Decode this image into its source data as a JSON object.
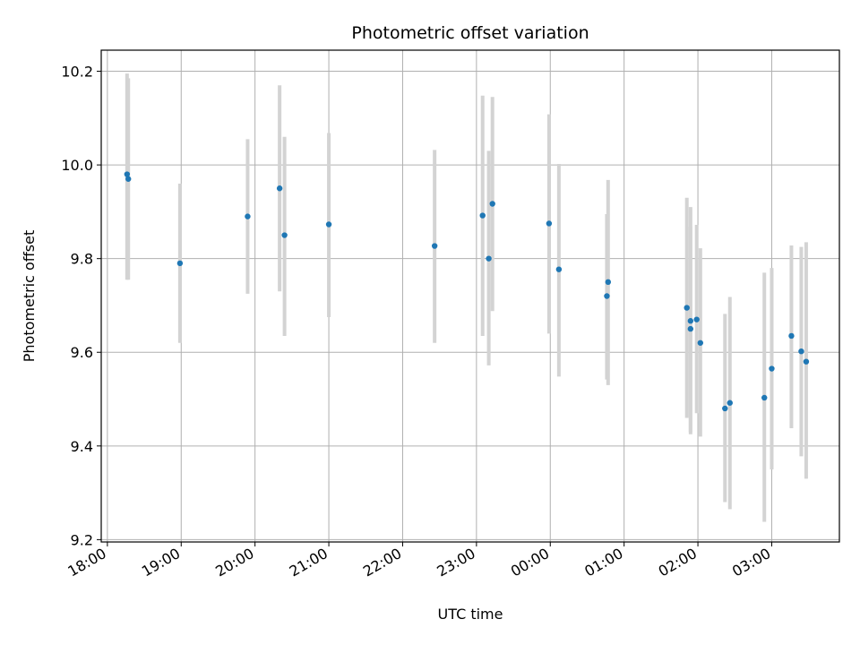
{
  "chart_data": {
    "type": "scatter",
    "title": "Photometric offset variation",
    "xlabel": "UTC time",
    "ylabel": "Photometric offset",
    "grid": true,
    "xlim": [
      "17:55",
      "03:55"
    ],
    "ylim": [
      9.195,
      10.245
    ],
    "x_ticks": [
      "18:00",
      "19:00",
      "20:00",
      "21:00",
      "22:00",
      "23:00",
      "00:00",
      "01:00",
      "02:00",
      "03:00"
    ],
    "y_ticks": [
      "9.2",
      "9.4",
      "9.6",
      "9.8",
      "10.0",
      "10.2"
    ],
    "colors": {
      "points": "#1f77b4",
      "errorbars": "#d3d3d3",
      "grid": "#b0b0b0"
    },
    "series": [
      {
        "points": [
          {
            "x": "18:16",
            "y": 9.98,
            "lo": 9.755,
            "hi": 10.195
          },
          {
            "x": "18:17",
            "y": 9.97,
            "lo": 9.755,
            "hi": 10.185
          },
          {
            "x": "18:59",
            "y": 9.79,
            "lo": 9.62,
            "hi": 9.96
          },
          {
            "x": "19:54",
            "y": 9.89,
            "lo": 9.725,
            "hi": 10.055
          },
          {
            "x": "20:20",
            "y": 9.95,
            "lo": 9.73,
            "hi": 10.17
          },
          {
            "x": "20:24",
            "y": 9.85,
            "lo": 9.635,
            "hi": 10.06
          },
          {
            "x": "21:00",
            "y": 9.873,
            "lo": 9.675,
            "hi": 10.068
          },
          {
            "x": "22:26",
            "y": 9.827,
            "lo": 9.62,
            "hi": 10.032
          },
          {
            "x": "23:05",
            "y": 9.892,
            "lo": 9.635,
            "hi": 10.148
          },
          {
            "x": "23:10",
            "y": 9.8,
            "lo": 9.572,
            "hi": 10.03
          },
          {
            "x": "23:13",
            "y": 9.917,
            "lo": 9.688,
            "hi": 10.145
          },
          {
            "x": "23:59",
            "y": 9.875,
            "lo": 9.64,
            "hi": 10.108
          },
          {
            "x": "00:07",
            "y": 9.777,
            "lo": 9.548,
            "hi": 10.002
          },
          {
            "x": "00:46",
            "y": 9.72,
            "lo": 9.542,
            "hi": 9.895
          },
          {
            "x": "00:47",
            "y": 9.75,
            "lo": 9.53,
            "hi": 9.968
          },
          {
            "x": "01:51",
            "y": 9.695,
            "lo": 9.46,
            "hi": 9.93
          },
          {
            "x": "01:54",
            "y": 9.667,
            "lo": 9.43,
            "hi": 9.91
          },
          {
            "x": "01:54",
            "y": 9.65,
            "lo": 9.425,
            "hi": 9.868
          },
          {
            "x": "01:59",
            "y": 9.67,
            "lo": 9.47,
            "hi": 9.872
          },
          {
            "x": "02:02",
            "y": 9.62,
            "lo": 9.42,
            "hi": 9.822
          },
          {
            "x": "02:22",
            "y": 9.48,
            "lo": 9.28,
            "hi": 9.682
          },
          {
            "x": "02:26",
            "y": 9.492,
            "lo": 9.265,
            "hi": 9.718
          },
          {
            "x": "02:54",
            "y": 9.503,
            "lo": 9.238,
            "hi": 9.77
          },
          {
            "x": "03:00",
            "y": 9.565,
            "lo": 9.35,
            "hi": 9.78
          },
          {
            "x": "03:16",
            "y": 9.635,
            "lo": 9.438,
            "hi": 9.828
          },
          {
            "x": "03:24",
            "y": 9.602,
            "lo": 9.378,
            "hi": 9.825
          },
          {
            "x": "03:28",
            "y": 9.58,
            "lo": 9.33,
            "hi": 9.835
          }
        ]
      }
    ]
  }
}
